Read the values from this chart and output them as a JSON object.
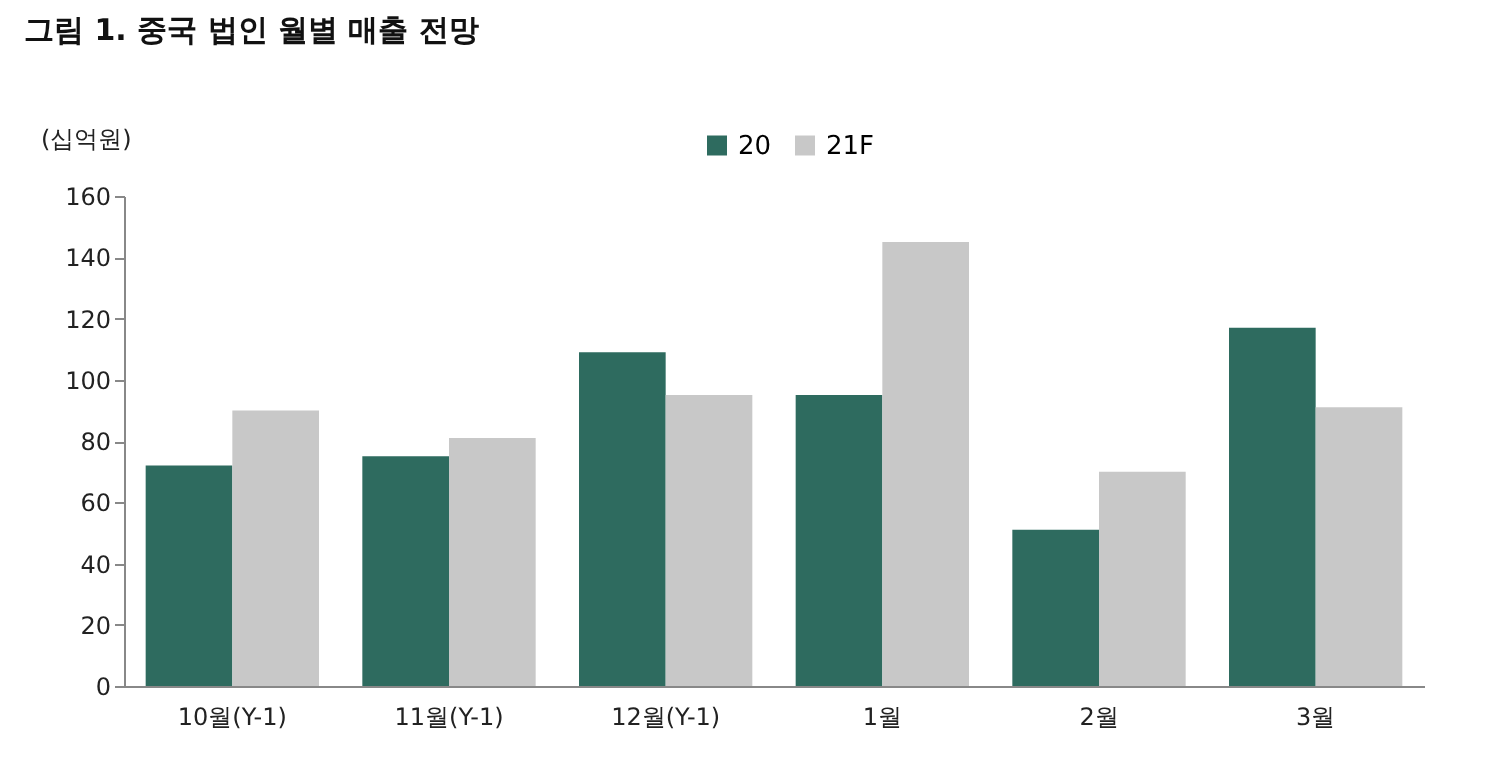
{
  "chart_data": {
    "type": "bar",
    "title": "그림 1. 중국 법인 월별 매출 전망",
    "ylabel": "(십억원)",
    "categories": [
      "10월(Y-1)",
      "11월(Y-1)",
      "12월(Y-1)",
      "1월",
      "2월",
      "3월"
    ],
    "series": [
      {
        "name": "20",
        "color": "#2e6b5f",
        "values": [
          72,
          75,
          109,
          95,
          51,
          117
        ]
      },
      {
        "name": "21F",
        "color": "#c8c8c8",
        "values": [
          90,
          81,
          95,
          145,
          70,
          91
        ]
      }
    ],
    "ylim": [
      0,
      160
    ],
    "yticks": [
      0,
      20,
      40,
      60,
      80,
      100,
      120,
      140,
      160
    ],
    "grid": false,
    "legend": "top"
  }
}
